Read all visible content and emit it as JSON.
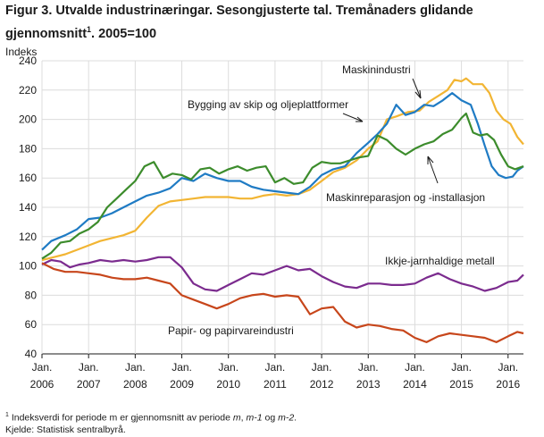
{
  "figure": {
    "title_prefix": "Figur 3. Utvalde industrinæringar. Sesongjusterte tal. Tremånaders glidande gjennomsnitt",
    "title_sup": "1",
    "title_suffix": ". 2005=100",
    "footnote_marker": "1",
    "footnote_text_a": " Indeksverdi for periode m er gjennomsnitt av periode ",
    "footnote_m": "m",
    "footnote_sep1": ", ",
    "footnote_m1": "m-1",
    "footnote_and": " og ",
    "footnote_m2": "m-2",
    "footnote_end": ".",
    "source": "Kjelde: Statistisk sentralbyrå."
  },
  "chart_data": {
    "type": "line",
    "ylabel": "Indeks",
    "ylim": [
      40,
      240
    ],
    "yticks": [
      40,
      60,
      80,
      100,
      120,
      140,
      160,
      180,
      200,
      220,
      240
    ],
    "xlim": [
      2006.0,
      2016.33
    ],
    "xtick_labels": [
      [
        "Jan.",
        "2006"
      ],
      [
        "Jan.",
        "2007"
      ],
      [
        "Jan.",
        "2008"
      ],
      [
        "Jan.",
        "2009"
      ],
      [
        "Jan.",
        "2010"
      ],
      [
        "Jan.",
        "2011"
      ],
      [
        "Jan.",
        "2012"
      ],
      [
        "Jan.",
        "2013"
      ],
      [
        "Jan.",
        "2014"
      ],
      [
        "Jan.",
        "2015"
      ],
      [
        "Jan.",
        "2016"
      ]
    ],
    "grid": true,
    "series": [
      {
        "name": "Maskinindustri",
        "color": "#f2b533",
        "points": [
          [
            2006.0,
            104
          ],
          [
            2006.25,
            106
          ],
          [
            2006.5,
            108
          ],
          [
            2006.75,
            111
          ],
          [
            2007.0,
            114
          ],
          [
            2007.25,
            117
          ],
          [
            2007.5,
            119
          ],
          [
            2007.75,
            121
          ],
          [
            2008.0,
            124
          ],
          [
            2008.25,
            133
          ],
          [
            2008.5,
            141
          ],
          [
            2008.75,
            144
          ],
          [
            2009.0,
            145
          ],
          [
            2009.25,
            146
          ],
          [
            2009.5,
            147
          ],
          [
            2009.75,
            147
          ],
          [
            2010.0,
            147
          ],
          [
            2010.25,
            146
          ],
          [
            2010.5,
            146
          ],
          [
            2010.75,
            148
          ],
          [
            2011.0,
            149
          ],
          [
            2011.25,
            148
          ],
          [
            2011.5,
            149
          ],
          [
            2011.75,
            152
          ],
          [
            2012.0,
            158
          ],
          [
            2012.25,
            164
          ],
          [
            2012.5,
            167
          ],
          [
            2012.75,
            172
          ],
          [
            2013.0,
            180
          ],
          [
            2013.2,
            185
          ],
          [
            2013.4,
            200
          ],
          [
            2013.6,
            202
          ],
          [
            2013.85,
            205
          ],
          [
            2014.1,
            206
          ],
          [
            2014.3,
            212
          ],
          [
            2014.5,
            216
          ],
          [
            2014.7,
            220
          ],
          [
            2014.85,
            227
          ],
          [
            2015.0,
            226
          ],
          [
            2015.1,
            228
          ],
          [
            2015.25,
            224
          ],
          [
            2015.45,
            224
          ],
          [
            2015.6,
            218
          ],
          [
            2015.75,
            206
          ],
          [
            2015.9,
            200
          ],
          [
            2016.05,
            197
          ],
          [
            2016.2,
            188
          ],
          [
            2016.33,
            183
          ]
        ]
      },
      {
        "name": "Bygging av skip og oljeplattformer",
        "color": "#1f7bc4",
        "points": [
          [
            2006.0,
            111
          ],
          [
            2006.2,
            117
          ],
          [
            2006.5,
            121
          ],
          [
            2006.75,
            125
          ],
          [
            2007.0,
            132
          ],
          [
            2007.25,
            133
          ],
          [
            2007.5,
            136
          ],
          [
            2007.75,
            140
          ],
          [
            2008.0,
            144
          ],
          [
            2008.25,
            148
          ],
          [
            2008.5,
            150
          ],
          [
            2008.75,
            153
          ],
          [
            2009.0,
            160
          ],
          [
            2009.25,
            158
          ],
          [
            2009.5,
            163
          ],
          [
            2009.75,
            160
          ],
          [
            2010.0,
            158
          ],
          [
            2010.25,
            158
          ],
          [
            2010.5,
            154
          ],
          [
            2010.75,
            152
          ],
          [
            2011.0,
            151
          ],
          [
            2011.25,
            150
          ],
          [
            2011.5,
            149
          ],
          [
            2011.75,
            154
          ],
          [
            2012.0,
            162
          ],
          [
            2012.25,
            166
          ],
          [
            2012.5,
            168
          ],
          [
            2012.75,
            177
          ],
          [
            2013.0,
            184
          ],
          [
            2013.2,
            190
          ],
          [
            2013.4,
            197
          ],
          [
            2013.6,
            210
          ],
          [
            2013.8,
            203
          ],
          [
            2014.0,
            205
          ],
          [
            2014.2,
            210
          ],
          [
            2014.4,
            209
          ],
          [
            2014.6,
            213
          ],
          [
            2014.8,
            218
          ],
          [
            2015.0,
            213
          ],
          [
            2015.2,
            210
          ],
          [
            2015.35,
            197
          ],
          [
            2015.5,
            182
          ],
          [
            2015.65,
            168
          ],
          [
            2015.8,
            162
          ],
          [
            2015.95,
            160
          ],
          [
            2016.1,
            161
          ],
          [
            2016.2,
            165
          ],
          [
            2016.33,
            168
          ]
        ]
      },
      {
        "name": "Maskinreparasjon  og -installasjon",
        "color": "#3c8c2c",
        "points": [
          [
            2006.0,
            105
          ],
          [
            2006.2,
            109
          ],
          [
            2006.4,
            116
          ],
          [
            2006.6,
            117
          ],
          [
            2006.8,
            122
          ],
          [
            2007.0,
            125
          ],
          [
            2007.2,
            130
          ],
          [
            2007.4,
            140
          ],
          [
            2007.6,
            146
          ],
          [
            2007.8,
            152
          ],
          [
            2008.0,
            158
          ],
          [
            2008.2,
            168
          ],
          [
            2008.4,
            171
          ],
          [
            2008.6,
            160
          ],
          [
            2008.8,
            163
          ],
          [
            2009.0,
            162
          ],
          [
            2009.2,
            159
          ],
          [
            2009.4,
            166
          ],
          [
            2009.6,
            167
          ],
          [
            2009.8,
            163
          ],
          [
            2010.0,
            166
          ],
          [
            2010.2,
            168
          ],
          [
            2010.4,
            165
          ],
          [
            2010.6,
            167
          ],
          [
            2010.8,
            168
          ],
          [
            2011.0,
            157
          ],
          [
            2011.2,
            160
          ],
          [
            2011.4,
            156
          ],
          [
            2011.6,
            157
          ],
          [
            2011.8,
            167
          ],
          [
            2012.0,
            171
          ],
          [
            2012.2,
            170
          ],
          [
            2012.4,
            170
          ],
          [
            2012.6,
            172
          ],
          [
            2012.8,
            174
          ],
          [
            2013.0,
            175
          ],
          [
            2013.2,
            189
          ],
          [
            2013.4,
            186
          ],
          [
            2013.6,
            180
          ],
          [
            2013.8,
            176
          ],
          [
            2014.0,
            180
          ],
          [
            2014.2,
            183
          ],
          [
            2014.4,
            185
          ],
          [
            2014.6,
            190
          ],
          [
            2014.8,
            193
          ],
          [
            2015.0,
            201
          ],
          [
            2015.1,
            204
          ],
          [
            2015.25,
            191
          ],
          [
            2015.4,
            189
          ],
          [
            2015.55,
            190
          ],
          [
            2015.7,
            186
          ],
          [
            2015.85,
            176
          ],
          [
            2016.0,
            168
          ],
          [
            2016.15,
            166
          ],
          [
            2016.33,
            168
          ]
        ]
      },
      {
        "name": "Ikkje-jarnhaldige  metall",
        "color": "#7b2b8e",
        "points": [
          [
            2006.0,
            101
          ],
          [
            2006.2,
            104
          ],
          [
            2006.4,
            103
          ],
          [
            2006.6,
            99
          ],
          [
            2006.8,
            101
          ],
          [
            2007.0,
            102
          ],
          [
            2007.25,
            104
          ],
          [
            2007.5,
            103
          ],
          [
            2007.75,
            104
          ],
          [
            2008.0,
            103
          ],
          [
            2008.25,
            104
          ],
          [
            2008.5,
            106
          ],
          [
            2008.75,
            106
          ],
          [
            2009.0,
            99
          ],
          [
            2009.25,
            88
          ],
          [
            2009.5,
            84
          ],
          [
            2009.75,
            83
          ],
          [
            2010.0,
            87
          ],
          [
            2010.25,
            91
          ],
          [
            2010.5,
            95
          ],
          [
            2010.75,
            94
          ],
          [
            2011.0,
            97
          ],
          [
            2011.25,
            100
          ],
          [
            2011.5,
            97
          ],
          [
            2011.75,
            98
          ],
          [
            2012.0,
            93
          ],
          [
            2012.25,
            89
          ],
          [
            2012.5,
            86
          ],
          [
            2012.75,
            85
          ],
          [
            2013.0,
            88
          ],
          [
            2013.25,
            88
          ],
          [
            2013.5,
            87
          ],
          [
            2013.75,
            87
          ],
          [
            2014.0,
            88
          ],
          [
            2014.25,
            92
          ],
          [
            2014.5,
            95
          ],
          [
            2014.75,
            91
          ],
          [
            2015.0,
            88
          ],
          [
            2015.25,
            86
          ],
          [
            2015.5,
            83
          ],
          [
            2015.75,
            85
          ],
          [
            2016.0,
            89
          ],
          [
            2016.2,
            90
          ],
          [
            2016.33,
            94
          ]
        ]
      },
      {
        "name": "Papir-  og papirvareindustri",
        "color": "#c7461b",
        "points": [
          [
            2006.0,
            102
          ],
          [
            2006.25,
            98
          ],
          [
            2006.5,
            96
          ],
          [
            2006.75,
            96
          ],
          [
            2007.0,
            95
          ],
          [
            2007.25,
            94
          ],
          [
            2007.5,
            92
          ],
          [
            2007.75,
            91
          ],
          [
            2008.0,
            91
          ],
          [
            2008.25,
            92
          ],
          [
            2008.5,
            90
          ],
          [
            2008.75,
            88
          ],
          [
            2009.0,
            80
          ],
          [
            2009.25,
            77
          ],
          [
            2009.5,
            74
          ],
          [
            2009.75,
            71
          ],
          [
            2010.0,
            74
          ],
          [
            2010.25,
            78
          ],
          [
            2010.5,
            80
          ],
          [
            2010.75,
            81
          ],
          [
            2011.0,
            79
          ],
          [
            2011.25,
            80
          ],
          [
            2011.5,
            79
          ],
          [
            2011.75,
            67
          ],
          [
            2012.0,
            71
          ],
          [
            2012.25,
            72
          ],
          [
            2012.5,
            62
          ],
          [
            2012.75,
            58
          ],
          [
            2013.0,
            60
          ],
          [
            2013.25,
            59
          ],
          [
            2013.5,
            57
          ],
          [
            2013.75,
            56
          ],
          [
            2014.0,
            51
          ],
          [
            2014.25,
            48
          ],
          [
            2014.5,
            52
          ],
          [
            2014.75,
            54
          ],
          [
            2015.0,
            53
          ],
          [
            2015.25,
            52
          ],
          [
            2015.5,
            51
          ],
          [
            2015.75,
            48
          ],
          [
            2016.0,
            52
          ],
          [
            2016.2,
            55
          ],
          [
            2016.33,
            54
          ]
        ]
      }
    ],
    "annotations": [
      {
        "text": "Maskinindustri",
        "series": "Maskinindustri",
        "arrow": true
      },
      {
        "text": "Bygging av skip og oljeplattformer",
        "series": "Bygging av skip og oljeplattformer",
        "arrow": true
      },
      {
        "text": "Maskinreparasjon  og -installasjon",
        "series": "Maskinreparasjon  og -installasjon",
        "arrow": true
      },
      {
        "text": "Ikkje-jarnhaldige  metall",
        "series": "Ikkje-jarnhaldige  metall",
        "arrow": false
      },
      {
        "text": "Papir-  og papirvareindustri",
        "series": "Papir-  og papirvareindustri",
        "arrow": false
      }
    ]
  }
}
